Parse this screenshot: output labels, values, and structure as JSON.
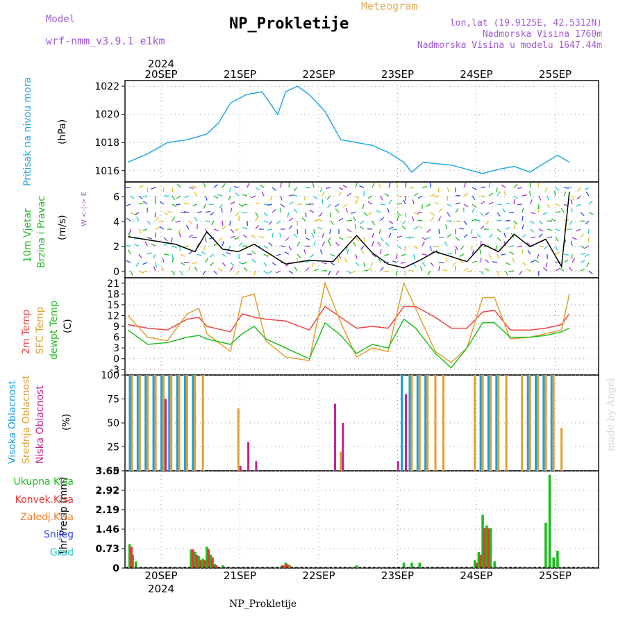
{
  "header": {
    "model_label": "Model",
    "model_value": "wrf-nmm_v3.9.1 e1km",
    "title": "NP_Prokletije",
    "meteogram_label": "Meteogram",
    "location_line1": "lon,lat (19.9125E, 42.5312N)",
    "location_line2": "Nadmorska Visina 1760m",
    "location_line3": "Nadmorska Visina u modelu 1647.44m"
  },
  "footer": {
    "station": "NP_Prokletije",
    "credit": "made by Angel"
  },
  "time_axis": {
    "year": "2024",
    "days": [
      "20SEP",
      "21SEP",
      "22SEP",
      "23SEP",
      "24SEP",
      "25SEP"
    ]
  },
  "panels": {
    "pressure": {
      "label": "Pritisak na nivou mora",
      "unit": "(hPa)",
      "ticks": [
        "1016",
        "1018",
        "1020",
        "1022"
      ],
      "color": "#22a6e8"
    },
    "wind": {
      "label1": "10m Vjetar",
      "label2": "Brzina i Pravac",
      "unit": "(m/s)",
      "compass": "W <-|-> E",
      "ticks": [
        "0",
        "2",
        "4",
        "6"
      ]
    },
    "temp": {
      "label_t2m": "2m Temp",
      "label_sfc": "SFC Temp",
      "label_dew": "dewpt Temp",
      "unit": "(C)",
      "ticks": [
        "-3",
        "0",
        "3",
        "6",
        "9",
        "12",
        "15",
        "18",
        "21"
      ]
    },
    "cloud": {
      "label_high": "Visoka Oblacnost",
      "label_mid": "Srednja Oblacnost",
      "label_low": "Niska Oblacnost",
      "unit": "(%)",
      "ticks": [
        "0",
        "25",
        "50",
        "75",
        "100"
      ]
    },
    "precip": {
      "label": "1hr Precip (mm)",
      "ticks": [
        "0",
        "0.73",
        "1.46",
        "2.19",
        "2.92",
        "3.65"
      ],
      "legend": [
        {
          "label": "Ukupna Kisa",
          "color": "#22bb22"
        },
        {
          "label": "Konvek.Kisa",
          "color": "#ee3333"
        },
        {
          "label": "Zaledj.Kisa",
          "color": "#f07a2a"
        },
        {
          "label": "Snijeg",
          "color": "#3344ee"
        },
        {
          "label": "Grad",
          "color": "#22c8c8"
        }
      ]
    }
  },
  "colors": {
    "pressure": "#22a6e8",
    "t2m": "#ee4444",
    "sfc": "#e0a030",
    "dew": "#22c022",
    "cloud_high": "#1c9ee0",
    "cloud_mid": "#e0a030",
    "cloud_low": "#c02090",
    "precip_total": "#22bb22",
    "precip_conv": "#ee3333"
  },
  "chart_data": [
    {
      "type": "line",
      "title": "",
      "ylabel": "Pritisak na nivou mora (hPa)",
      "ylim": [
        1015.2,
        1022.4
      ],
      "x_days": [
        0,
        0.25,
        0.5,
        0.75,
        1.0,
        1.15,
        1.3,
        1.5,
        1.7,
        1.9,
        2.0,
        2.15,
        2.3,
        2.5,
        2.7,
        2.9,
        3.1,
        3.3,
        3.5,
        3.6,
        3.75,
        3.9,
        4.1,
        4.3,
        4.5,
        4.7,
        4.9,
        5.1,
        5.3,
        5.45,
        5.6
      ],
      "series": [
        {
          "values": [
            1016.6,
            1017.2,
            1018.0,
            1018.2,
            1018.6,
            1019.4,
            1020.8,
            1021.4,
            1021.6,
            1020.0,
            1021.6,
            1022.0,
            1021.4,
            1020.2,
            1018.2,
            1018.0,
            1017.8,
            1017.3,
            1016.6,
            1015.9,
            1016.6,
            1016.5,
            1016.4,
            1016.1,
            1015.8,
            1016.1,
            1016.3,
            1015.9,
            1016.6,
            1017.1,
            1016.6
          ]
        }
      ]
    },
    {
      "type": "line",
      "title": "",
      "ylabel": "10m Vjetar Brzina i Pravac (m/s)",
      "ylim": [
        -0.5,
        7.2
      ],
      "x_days": [
        0,
        0.3,
        0.6,
        0.85,
        1.0,
        1.2,
        1.4,
        1.6,
        1.8,
        2.0,
        2.3,
        2.6,
        2.9,
        3.1,
        3.3,
        3.5,
        3.7,
        3.9,
        4.1,
        4.3,
        4.5,
        4.7,
        4.9,
        5.1,
        5.3,
        5.5,
        5.6
      ],
      "series": [
        {
          "values": [
            2.8,
            2.5,
            2.2,
            1.6,
            3.2,
            1.8,
            1.6,
            2.2,
            1.4,
            0.6,
            0.9,
            0.8,
            2.9,
            1.5,
            0.6,
            0.3,
            0.9,
            1.6,
            1.2,
            0.8,
            2.2,
            1.6,
            3.0,
            2.0,
            2.6,
            0.4,
            6.4
          ]
        }
      ]
    },
    {
      "type": "line",
      "title": "",
      "ylabel": "Temperatura (C)",
      "ylim": [
        -4.5,
        22.5
      ],
      "x_days": [
        0,
        0.25,
        0.5,
        0.75,
        0.9,
        1.0,
        1.3,
        1.45,
        1.6,
        1.75,
        2.0,
        2.3,
        2.5,
        2.7,
        2.9,
        3.1,
        3.3,
        3.5,
        3.65,
        3.9,
        4.1,
        4.3,
        4.5,
        4.65,
        4.85,
        5.1,
        5.3,
        5.5,
        5.6
      ],
      "series": [
        {
          "name": "2m Temp",
          "values": [
            9.5,
            8.5,
            8.0,
            11.0,
            11.5,
            9.0,
            7.5,
            12.5,
            11.5,
            11.0,
            10.5,
            8.0,
            14.5,
            11.5,
            8.5,
            9.0,
            8.5,
            14.5,
            14.5,
            11.5,
            8.5,
            8.5,
            13.0,
            13.5,
            8.0,
            8.0,
            8.5,
            9.5,
            12.5
          ]
        },
        {
          "name": "SFC Temp",
          "values": [
            12.0,
            6.0,
            5.0,
            12.5,
            14.0,
            7.0,
            2.0,
            17.0,
            18.0,
            5.0,
            0.5,
            -0.5,
            21.0,
            10.0,
            0.5,
            3.0,
            2.0,
            21.0,
            14.0,
            2.0,
            -1.0,
            3.0,
            17.0,
            17.0,
            5.5,
            6.0,
            7.0,
            8.0,
            18.0
          ]
        },
        {
          "name": "dewpt Temp",
          "values": [
            8.0,
            4.0,
            4.5,
            6.0,
            6.5,
            5.5,
            4.0,
            7.0,
            9.0,
            5.5,
            3.0,
            0.0,
            10.0,
            6.5,
            1.5,
            4.0,
            3.0,
            11.0,
            8.5,
            1.5,
            -2.5,
            3.0,
            10.0,
            10.0,
            6.0,
            6.0,
            6.5,
            7.5,
            8.5
          ]
        }
      ]
    },
    {
      "type": "bar",
      "title": "",
      "ylabel": "Oblacnost (%)",
      "ylim": [
        0,
        100
      ],
      "x_days": [
        0.05,
        0.15,
        0.25,
        0.35,
        0.45,
        0.55,
        0.65,
        0.75,
        0.85,
        0.95,
        1.4,
        1.5,
        1.6,
        2.6,
        2.7,
        3.4,
        3.5,
        3.6,
        3.7,
        3.8,
        3.9,
        4.0,
        4.4,
        4.5,
        4.6,
        4.7,
        4.8,
        5.0,
        5.1,
        5.2,
        5.3,
        5.4,
        5.5
      ],
      "series": [
        {
          "name": "Visoka Oblacnost",
          "values": [
            100,
            100,
            100,
            100,
            100,
            100,
            100,
            100,
            100,
            0,
            0,
            0,
            0,
            0,
            0,
            0,
            100,
            100,
            100,
            100,
            0,
            0,
            0,
            100,
            100,
            100,
            0,
            0,
            100,
            100,
            100,
            100,
            0
          ]
        },
        {
          "name": "Srednja Oblacnost",
          "values": [
            100,
            100,
            100,
            100,
            100,
            100,
            100,
            100,
            100,
            100,
            65,
            0,
            0,
            0,
            20,
            0,
            0,
            100,
            100,
            100,
            100,
            100,
            100,
            100,
            100,
            100,
            100,
            100,
            100,
            100,
            100,
            100,
            45
          ]
        },
        {
          "name": "Niska Oblacnost",
          "values": [
            0,
            0,
            0,
            0,
            75,
            0,
            0,
            0,
            0,
            0,
            5,
            30,
            10,
            70,
            50,
            10,
            80,
            0,
            0,
            0,
            0,
            0,
            0,
            0,
            0,
            0,
            0,
            0,
            0,
            0,
            0,
            0,
            0
          ]
        }
      ]
    },
    {
      "type": "bar",
      "title": "",
      "ylabel": "1hr Precip (mm)",
      "ylim": [
        0,
        3.65
      ],
      "x_days": [
        0.02,
        0.06,
        0.1,
        0.8,
        0.85,
        0.9,
        0.95,
        1.0,
        1.05,
        1.1,
        1.2,
        1.95,
        2.0,
        2.05,
        2.9,
        3.5,
        3.6,
        3.7,
        4.4,
        4.45,
        4.5,
        4.55,
        4.6,
        4.65,
        5.3,
        5.35,
        5.4,
        5.45
      ],
      "series": [
        {
          "name": "Ukupna Kisa",
          "values": [
            0.9,
            0.5,
            0.25,
            0.7,
            0.6,
            0.45,
            0.35,
            0.8,
            0.5,
            0.15,
            0.1,
            0.1,
            0.2,
            0.1,
            0.1,
            0.2,
            0.2,
            0.2,
            0.3,
            0.6,
            2.0,
            1.6,
            1.5,
            0.25,
            1.7,
            3.5,
            0.4,
            0.65
          ]
        },
        {
          "name": "Konvek.Kisa",
          "values": [
            0.8,
            0,
            0,
            0.7,
            0.5,
            0.3,
            0.3,
            0.7,
            0.4,
            0.1,
            0.05,
            0.1,
            0.15,
            0.05,
            0,
            0,
            0,
            0,
            0.2,
            0.5,
            1.5,
            1.5,
            0,
            0,
            0,
            0,
            0,
            0
          ]
        }
      ]
    }
  ]
}
